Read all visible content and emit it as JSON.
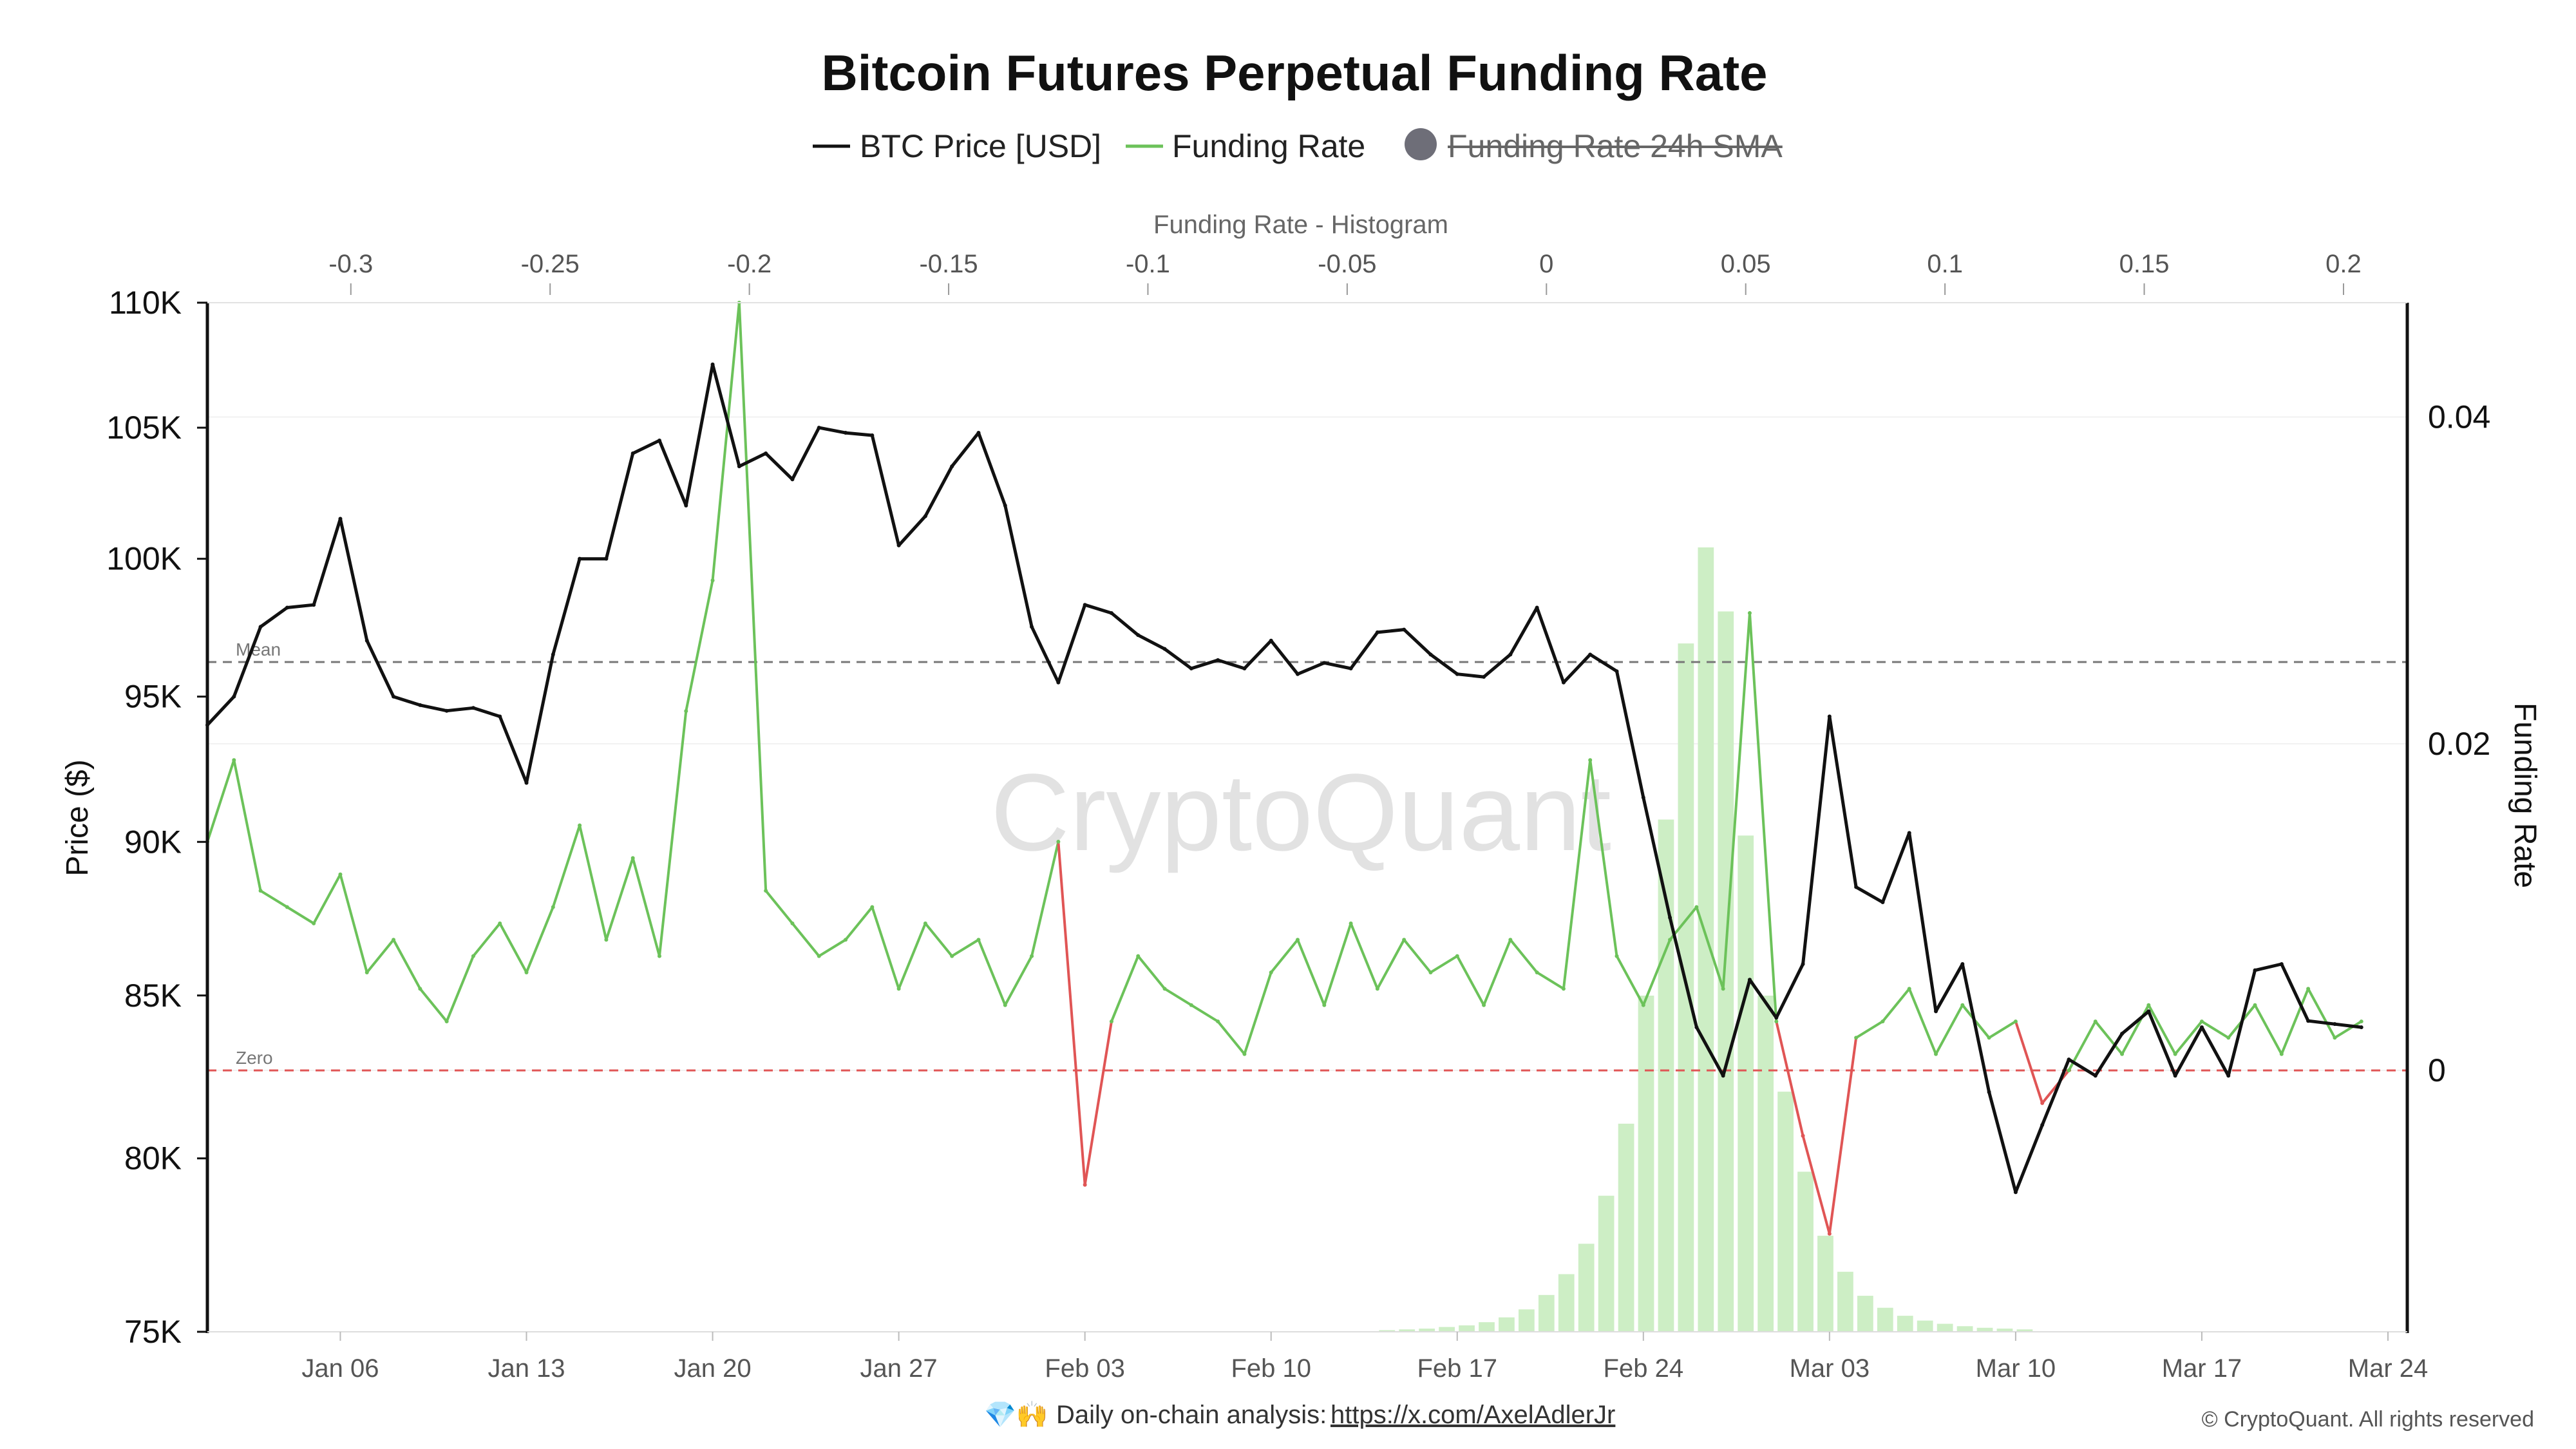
{
  "colors": {
    "price": "#111111",
    "funding": "#6cc25a",
    "funding_negative": "#e05555",
    "histogram": "#cdeec5",
    "mean_line": "#777777",
    "zero_line": "#e05555",
    "sma_disabled": "#6e6e78"
  },
  "chart_data": {
    "type": "line",
    "title": "Bitcoin Futures Perpetual Funding Rate",
    "legend": [
      {
        "name": "BTC Price [USD]",
        "color": "#111111",
        "style": "line",
        "enabled": true
      },
      {
        "name": "Funding Rate",
        "color": "#6cc25a",
        "style": "line",
        "enabled": true
      },
      {
        "name": "Funding Rate 24h SMA",
        "color": "#6e6e78",
        "style": "dot",
        "enabled": false
      }
    ],
    "legend_placement": "top-center",
    "watermark": "CryptoQuant",
    "ylabel_left": "Price ($)",
    "ylabel_right": "Funding Rate",
    "histogram_title": "Funding Rate - Histogram",
    "x_axis": {
      "type": "date",
      "range": [
        "2025-01-01",
        "2025-03-24"
      ],
      "ticks": [
        "Jan 06",
        "Jan 13",
        "Jan 20",
        "Jan 27",
        "Feb 03",
        "Feb 10",
        "Feb 17",
        "Feb 24",
        "Mar 03",
        "Mar 10",
        "Mar 17",
        "Mar 24"
      ]
    },
    "y_left": {
      "scale": "log",
      "range": [
        75000,
        110000
      ],
      "ticks": [
        {
          "value": 75000,
          "label": "75K"
        },
        {
          "value": 80000,
          "label": "80K"
        },
        {
          "value": 85000,
          "label": "85K"
        },
        {
          "value": 90000,
          "label": "90K"
        },
        {
          "value": 95000,
          "label": "95K"
        },
        {
          "value": 100000,
          "label": "100K"
        },
        {
          "value": 105000,
          "label": "105K"
        },
        {
          "value": 110000,
          "label": "110K"
        }
      ]
    },
    "y_right": {
      "scale": "linear",
      "range": [
        -0.016,
        0.047
      ],
      "ticks": [
        {
          "value": 0,
          "label": "0"
        },
        {
          "value": 0.02,
          "label": "0.02"
        },
        {
          "value": 0.04,
          "label": "0.04"
        }
      ]
    },
    "histogram_axis": {
      "range": [
        -0.336,
        0.216
      ],
      "ticks": [
        {
          "value": -0.3,
          "label": "-0.3"
        },
        {
          "value": -0.25,
          "label": "-0.25"
        },
        {
          "value": -0.2,
          "label": "-0.2"
        },
        {
          "value": -0.15,
          "label": "-0.15"
        },
        {
          "value": -0.1,
          "label": "-0.1"
        },
        {
          "value": -0.05,
          "label": "-0.05"
        },
        {
          "value": 0,
          "label": "0"
        },
        {
          "value": 0.05,
          "label": "0.05"
        },
        {
          "value": 0.1,
          "label": "0.1"
        },
        {
          "value": 0.15,
          "label": "0.15"
        },
        {
          "value": 0.2,
          "label": "0.2"
        }
      ]
    },
    "reference_lines": [
      {
        "name": "Mean",
        "axis": "right",
        "value": 0.025,
        "color": "#777777",
        "dash": true
      },
      {
        "name": "Zero",
        "axis": "right",
        "value": 0,
        "color": "#e05555",
        "dash": true
      }
    ],
    "series": [
      {
        "name": "BTC Price [USD]",
        "axis": "left",
        "x": [
          "2025-01-01",
          "2025-01-02",
          "2025-01-03",
          "2025-01-04",
          "2025-01-05",
          "2025-01-06",
          "2025-01-07",
          "2025-01-08",
          "2025-01-09",
          "2025-01-10",
          "2025-01-11",
          "2025-01-12",
          "2025-01-13",
          "2025-01-14",
          "2025-01-15",
          "2025-01-16",
          "2025-01-17",
          "2025-01-18",
          "2025-01-19",
          "2025-01-20",
          "2025-01-21",
          "2025-01-22",
          "2025-01-23",
          "2025-01-24",
          "2025-01-25",
          "2025-01-26",
          "2025-01-27",
          "2025-01-28",
          "2025-01-29",
          "2025-01-30",
          "2025-01-31",
          "2025-02-01",
          "2025-02-02",
          "2025-02-03",
          "2025-02-04",
          "2025-02-05",
          "2025-02-06",
          "2025-02-07",
          "2025-02-08",
          "2025-02-09",
          "2025-02-10",
          "2025-02-11",
          "2025-02-12",
          "2025-02-13",
          "2025-02-14",
          "2025-02-15",
          "2025-02-16",
          "2025-02-17",
          "2025-02-18",
          "2025-02-19",
          "2025-02-20",
          "2025-02-21",
          "2025-02-22",
          "2025-02-23",
          "2025-02-24",
          "2025-02-25",
          "2025-02-26",
          "2025-02-27",
          "2025-02-28",
          "2025-03-01",
          "2025-03-02",
          "2025-03-03",
          "2025-03-04",
          "2025-03-05",
          "2025-03-06",
          "2025-03-07",
          "2025-03-08",
          "2025-03-09",
          "2025-03-10",
          "2025-03-11",
          "2025-03-12",
          "2025-03-13",
          "2025-03-14",
          "2025-03-15",
          "2025-03-16",
          "2025-03-17",
          "2025-03-18",
          "2025-03-19",
          "2025-03-20",
          "2025-03-21",
          "2025-03-22",
          "2025-03-23"
        ],
        "values": [
          94000,
          95000,
          97500,
          98200,
          98300,
          101500,
          97000,
          95000,
          94700,
          94500,
          94600,
          94300,
          92000,
          96500,
          100000,
          100000,
          104000,
          104500,
          102000,
          107500,
          103500,
          104000,
          103000,
          105000,
          104800,
          104700,
          100500,
          101600,
          103500,
          104800,
          102000,
          97500,
          95500,
          98300,
          98000,
          97200,
          96700,
          96000,
          96300,
          96000,
          97000,
          95800,
          96200,
          96000,
          97300,
          97400,
          96500,
          95800,
          95700,
          96500,
          98200,
          95500,
          96500,
          95900,
          91500,
          87500,
          84000,
          82500,
          85500,
          84300,
          86000,
          94300,
          88500,
          88000,
          90300,
          84500,
          86000,
          82000,
          79000,
          81000,
          83000,
          82500,
          83800,
          84500,
          82500,
          84000,
          82500,
          85800,
          86000,
          84200,
          84100,
          84000
        ]
      },
      {
        "name": "Funding Rate",
        "axis": "right",
        "x": [
          "2025-01-01",
          "2025-01-02",
          "2025-01-03",
          "2025-01-04",
          "2025-01-05",
          "2025-01-06",
          "2025-01-07",
          "2025-01-08",
          "2025-01-09",
          "2025-01-10",
          "2025-01-11",
          "2025-01-12",
          "2025-01-13",
          "2025-01-14",
          "2025-01-15",
          "2025-01-16",
          "2025-01-17",
          "2025-01-18",
          "2025-01-19",
          "2025-01-20",
          "2025-01-21",
          "2025-01-22",
          "2025-01-23",
          "2025-01-24",
          "2025-01-25",
          "2025-01-26",
          "2025-01-27",
          "2025-01-28",
          "2025-01-29",
          "2025-01-30",
          "2025-01-31",
          "2025-02-01",
          "2025-02-02",
          "2025-02-03",
          "2025-02-04",
          "2025-02-05",
          "2025-02-06",
          "2025-02-07",
          "2025-02-08",
          "2025-02-09",
          "2025-02-10",
          "2025-02-11",
          "2025-02-12",
          "2025-02-13",
          "2025-02-14",
          "2025-02-15",
          "2025-02-16",
          "2025-02-17",
          "2025-02-18",
          "2025-02-19",
          "2025-02-20",
          "2025-02-21",
          "2025-02-22",
          "2025-02-23",
          "2025-02-24",
          "2025-02-25",
          "2025-02-26",
          "2025-02-27",
          "2025-02-28",
          "2025-03-01",
          "2025-03-02",
          "2025-03-03",
          "2025-03-04",
          "2025-03-05",
          "2025-03-06",
          "2025-03-07",
          "2025-03-08",
          "2025-03-09",
          "2025-03-10",
          "2025-03-11",
          "2025-03-12",
          "2025-03-13",
          "2025-03-14",
          "2025-03-15",
          "2025-03-16",
          "2025-03-17",
          "2025-03-18",
          "2025-03-19",
          "2025-03-20",
          "2025-03-21",
          "2025-03-22",
          "2025-03-23"
        ],
        "values": [
          0.014,
          0.019,
          0.011,
          0.01,
          0.009,
          0.012,
          0.006,
          0.008,
          0.005,
          0.003,
          0.007,
          0.009,
          0.006,
          0.01,
          0.015,
          0.008,
          0.013,
          0.007,
          0.022,
          0.03,
          0.047,
          0.011,
          0.009,
          0.007,
          0.008,
          0.01,
          0.005,
          0.009,
          0.007,
          0.008,
          0.004,
          0.007,
          0.014,
          -0.007,
          0.003,
          0.007,
          0.005,
          0.004,
          0.003,
          0.001,
          0.006,
          0.008,
          0.004,
          0.009,
          0.005,
          0.008,
          0.006,
          0.007,
          0.004,
          0.008,
          0.006,
          0.005,
          0.019,
          0.007,
          0.004,
          0.008,
          0.01,
          0.005,
          0.028,
          0.003,
          -0.004,
          -0.01,
          0.002,
          0.003,
          0.005,
          0.001,
          0.004,
          0.002,
          0.003,
          -0.002,
          0.0,
          0.003,
          0.001,
          0.004,
          0.001,
          0.003,
          0.002,
          0.004,
          0.001,
          0.005,
          0.002,
          0.003
        ]
      }
    ],
    "histogram": {
      "name": "Funding Rate - Histogram",
      "bins": [
        -0.04,
        -0.035,
        -0.03,
        -0.025,
        -0.02,
        -0.015,
        -0.01,
        -0.005,
        0.0,
        0.005,
        0.01,
        0.015,
        0.02,
        0.025,
        0.03,
        0.035,
        0.04,
        0.045,
        0.05,
        0.055,
        0.06,
        0.065,
        0.07,
        0.075,
        0.08,
        0.085,
        0.09,
        0.095,
        0.1,
        0.105,
        0.11,
        0.115,
        0.12
      ],
      "counts": [
        2,
        3,
        4,
        6,
        8,
        12,
        18,
        28,
        46,
        72,
        110,
        170,
        260,
        420,
        640,
        860,
        980,
        900,
        620,
        420,
        300,
        200,
        120,
        75,
        45,
        30,
        20,
        14,
        10,
        7,
        5,
        4,
        3
      ]
    }
  },
  "footer": {
    "icons": "💎🙌",
    "text": "Daily on-chain analysis:",
    "link": "https://x.com/AxelAdlerJr"
  },
  "copyright": "© CryptoQuant. All rights reserved"
}
